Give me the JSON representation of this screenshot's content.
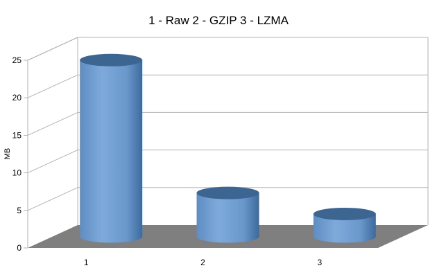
{
  "chart_data": {
    "type": "bar",
    "style": "3d-cylinder",
    "title": "1 - Raw   2 - GZIP   3 - LZMA",
    "xlabel": "",
    "ylabel": "MB",
    "categories": [
      "1",
      "2",
      "3"
    ],
    "values": [
      23.5,
      5.8,
      3.0
    ],
    "ylim": [
      0,
      25
    ],
    "yticks": [
      0,
      5,
      10,
      15,
      20,
      25
    ],
    "grid": true,
    "colors": {
      "bar": "#729fcf",
      "bar_top": "#3c6591",
      "floor": "#7f7f7f",
      "grid": "#b3b3b3"
    }
  }
}
